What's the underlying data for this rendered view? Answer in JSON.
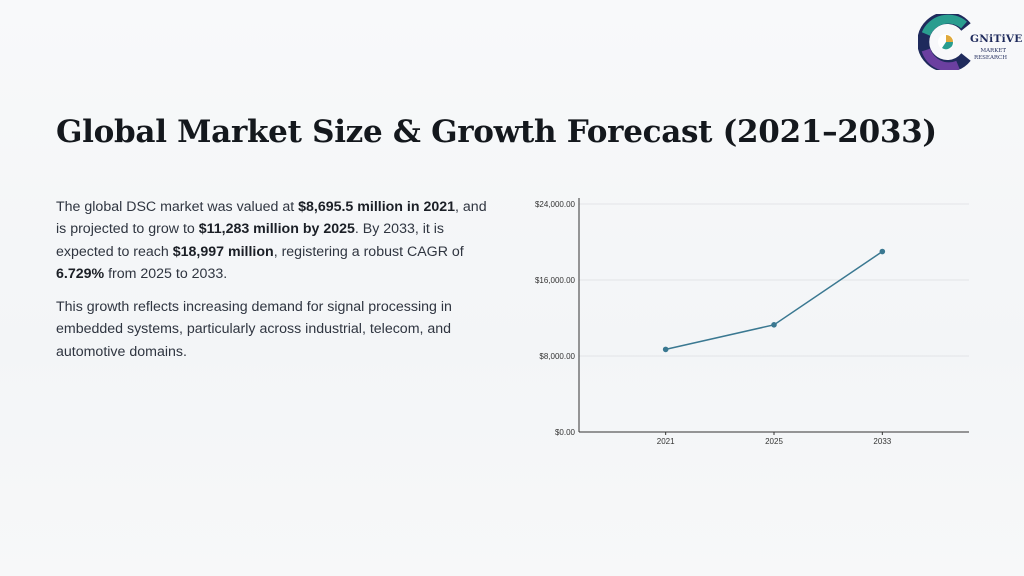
{
  "brand": {
    "logo_word": "GNiTiVE",
    "logo_line1": "MARKET",
    "logo_line2": "RESEARCH",
    "colors": {
      "navy": "#1f2a5c",
      "teal": "#2a9d8f",
      "purple": "#6b3fa0"
    }
  },
  "title": "Global Market Size & Growth Forecast (2021–2033)",
  "paragraph1": {
    "t1": "The global DSC market was valued at ",
    "b1": "$8,695.5 million in 2021",
    "t2": ", and is projected to grow to ",
    "b2": "$11,283 million by 2025",
    "t3": ". By 2033, it is expected to reach ",
    "b3": "$18,997 million",
    "t4": ", registering a robust CAGR of ",
    "b4": "6.729%",
    "t5": " from 2025 to 2033."
  },
  "paragraph2": "This growth reflects increasing demand for signal processing in embedded systems, particularly across industrial, telecom, and automotive domains.",
  "chart_data": {
    "type": "line",
    "categories": [
      "2021",
      "2025",
      "2033"
    ],
    "values": [
      8695.5,
      11283,
      18997
    ],
    "y_ticks": [
      0,
      8000,
      16000,
      24000
    ],
    "y_tick_labels": [
      "$0.00",
      "$8,000.00",
      "$16,000.00",
      "$24,000.00"
    ],
    "ylim": [
      0,
      24000
    ],
    "grid": true,
    "line_color": "#3a7891"
  }
}
